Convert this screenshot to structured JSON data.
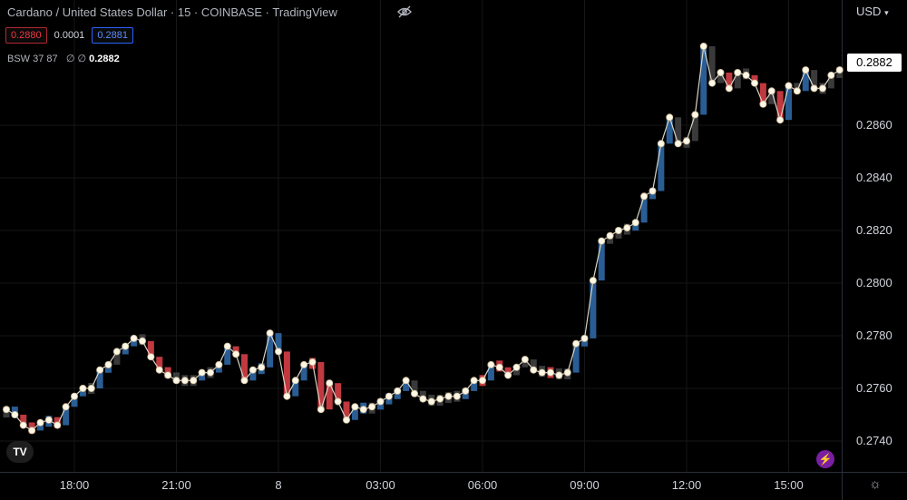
{
  "header": {
    "title": "Cardano / United States Dollar · 15 · COINBASE · TradingView",
    "sell_price": "0.2880",
    "spread": "0.0001",
    "buy_price": "0.2881",
    "indicator": "BSW 37 87",
    "indicator_values": "∅ ∅",
    "indicator_last": "0.2882",
    "currency": "USD",
    "current_price": "0.2882",
    "logo_text": "TV"
  },
  "colors": {
    "up": "#2a5d94",
    "down": "#c0393f",
    "neutral": "#3a3a3a",
    "line": "#d9d4c6",
    "marker": "#fff7e6",
    "grid": "#161616"
  },
  "chart_data": {
    "type": "line",
    "title": "Cardano / United States Dollar",
    "xlabel": "",
    "ylabel": "USD",
    "ylim": [
      0.2725,
      0.29
    ],
    "yticks": [
      "0.2740",
      "0.2760",
      "0.2780",
      "0.2800",
      "0.2820",
      "0.2840",
      "0.2860"
    ],
    "xtick_labels": [
      "18:00",
      "21:00",
      "8",
      "03:00",
      "06:00",
      "09:00",
      "12:00",
      "15:00"
    ],
    "xtick_index": [
      8,
      20,
      32,
      44,
      56,
      68,
      80,
      92
    ],
    "grid": true,
    "legend": "none",
    "series": [
      {
        "values": [
          0.2752,
          0.275,
          0.2746,
          0.2744,
          0.2747,
          0.2748,
          0.2746,
          0.2753,
          0.2757,
          0.276,
          0.276,
          0.2767,
          0.2769,
          0.2774,
          0.2776,
          0.2779,
          0.2778,
          0.2772,
          0.2767,
          0.2765,
          0.2763,
          0.2763,
          0.2763,
          0.2766,
          0.2766,
          0.2769,
          0.2776,
          0.2773,
          0.2763,
          0.2767,
          0.2768,
          0.2781,
          0.2774,
          0.2757,
          0.2763,
          0.2769,
          0.277,
          0.2752,
          0.2762,
          0.2755,
          0.2748,
          0.2753,
          0.2752,
          0.2753,
          0.2755,
          0.2757,
          0.2759,
          0.2763,
          0.2758,
          0.2756,
          0.2755,
          0.2756,
          0.2757,
          0.2757,
          0.2759,
          0.2763,
          0.2763,
          0.2769,
          0.2768,
          0.2765,
          0.2768,
          0.2771,
          0.2767,
          0.2766,
          0.2766,
          0.2765,
          0.2766,
          0.2777,
          0.2779,
          0.2801,
          0.2816,
          0.2818,
          0.282,
          0.2821,
          0.2823,
          0.2833,
          0.2835,
          0.2853,
          0.2863,
          0.2853,
          0.2854,
          0.2864,
          0.289,
          0.2876,
          0.288,
          0.2874,
          0.288,
          0.2879,
          0.2876,
          0.2868,
          0.2873,
          0.2862,
          0.2875,
          0.2873,
          0.2881,
          0.2874,
          0.2874,
          0.2879,
          0.2881
        ],
        "candle_dir": [
          "n",
          "u",
          "d",
          "d",
          "u",
          "u",
          "d",
          "u",
          "u",
          "u",
          "n",
          "u",
          "u",
          "n",
          "u",
          "u",
          "n",
          "d",
          "d",
          "d",
          "n",
          "n",
          "n",
          "u",
          "n",
          "u",
          "u",
          "d",
          "d",
          "u",
          "u",
          "u",
          "u",
          "d",
          "u",
          "u",
          "d",
          "d",
          "d",
          "d",
          "d",
          "u",
          "u",
          "n",
          "u",
          "u",
          "u",
          "u",
          "n",
          "n",
          "n",
          "n",
          "n",
          "n",
          "u",
          "u",
          "d",
          "u",
          "d",
          "d",
          "n",
          "n",
          "n",
          "n",
          "d",
          "n",
          "n",
          "u",
          "u",
          "u",
          "u",
          "n",
          "n",
          "n",
          "u",
          "u",
          "u",
          "u",
          "u",
          "n",
          "n",
          "n",
          "u",
          "n",
          "n",
          "d",
          "n",
          "n",
          "d",
          "d",
          "n",
          "d",
          "u",
          "n",
          "u",
          "n",
          "n",
          "n",
          "n"
        ]
      }
    ]
  }
}
